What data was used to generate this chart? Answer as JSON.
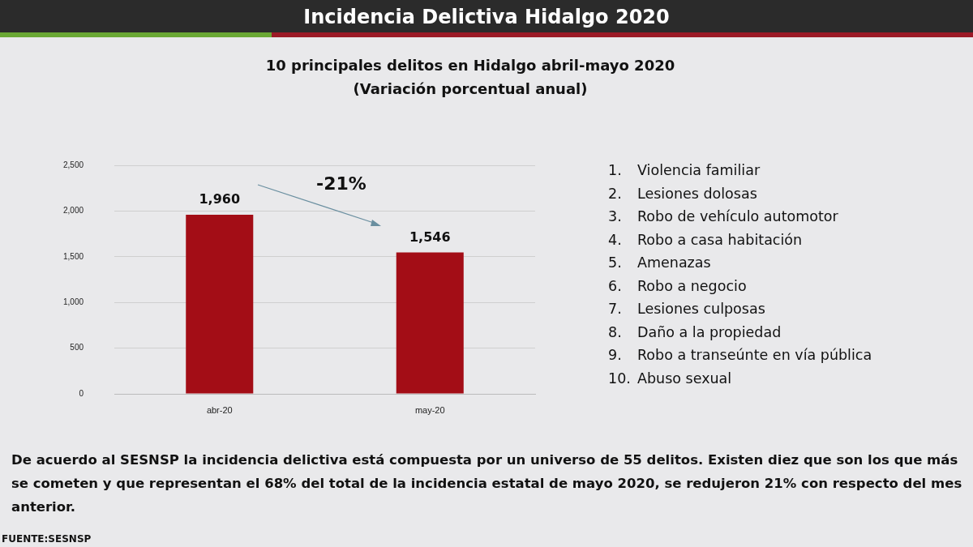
{
  "chart_data": {
    "type": "bar",
    "title": "Incidencia Delictiva Hidalgo 2020",
    "subtitle": "10 principales delitos en Hidalgo abril-mayo 2020\n(Variación porcentual anual)",
    "categories": [
      "abr-20",
      "may-20"
    ],
    "values": [
      1960,
      1546
    ],
    "color": "#a30d16",
    "value_labels": [
      "1,960",
      "1,546"
    ],
    "ylim": [
      0,
      2500
    ],
    "yticks": [
      {
        "value": 0,
        "label": "0"
      },
      {
        "value": 500,
        "label": "500"
      },
      {
        "value": 1000,
        "label": "1,000"
      },
      {
        "value": 1500,
        "label": "1,500"
      },
      {
        "value": 2000,
        "label": "2,000"
      },
      {
        "value": 2500,
        "label": "2,500"
      }
    ],
    "grid": "y",
    "annotations": [
      "-21%",
      "1.\tViolencia familiar",
      "2.\tLesiones dolosas",
      "3.\tRobo de vehículo automotor",
      "4.\tRobo a casa habitación",
      "5.\tAmenazas",
      "6.\tRobo a negocio",
      "7.\tLesiones culposas",
      "8.\tDaño a la propiedad",
      "9.\tRobo a transeúnte en vía pública",
      "10.\tAbuso sexual",
      "De acuerdo al SESNSP la incidencia delictiva está compuesta por un universo de 55 delitos. Existen diez que son los que más se cometen  y que representan el 68% del total de la incidencia estatal de mayo 2020, se redujeron 21% con respecto del mes anterior.",
      "FUENTE:SESNSP"
    ]
  }
}
